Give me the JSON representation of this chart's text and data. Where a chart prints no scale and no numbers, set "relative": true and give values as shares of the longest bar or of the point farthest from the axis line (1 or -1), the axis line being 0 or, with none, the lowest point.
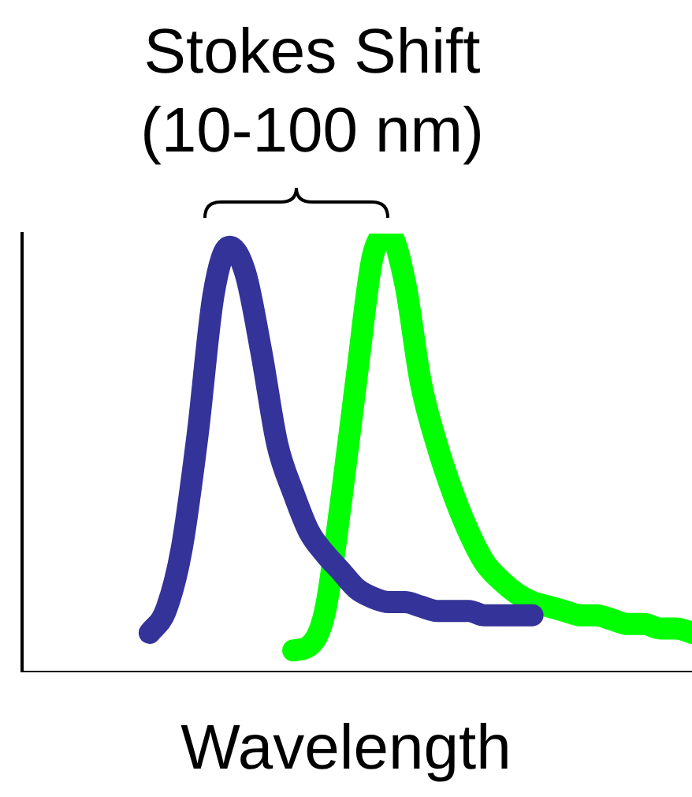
{
  "chart_data": {
    "type": "line",
    "relative": true,
    "xlabel": "Wavelength",
    "annotations": [
      "Stokes Shift (10-100 nm)"
    ],
    "categories": [
      null,
      null,
      null,
      null,
      null,
      null,
      null,
      null,
      null,
      null,
      null,
      null,
      null,
      null,
      null,
      null,
      null,
      null,
      null,
      null,
      null,
      null,
      null,
      null,
      null,
      null,
      null,
      null,
      null,
      null,
      null,
      null,
      null,
      null,
      null,
      null,
      null,
      null,
      null,
      null,
      null,
      null,
      null
    ],
    "series": [
      {
        "color": "#333399",
        "values": [
          null,
          null,
          null,
          null,
          null,
          null,
          null,
          null,
          0.09,
          0.14,
          0.28,
          0.54,
          0.86,
          0.97,
          0.91,
          0.73,
          0.52,
          0.41,
          0.32,
          0.27,
          0.23,
          0.19,
          0.17,
          0.16,
          0.16,
          0.15,
          0.14,
          0.14,
          0.14,
          0.13,
          0.13,
          0.13,
          0.13,
          null,
          null,
          null,
          null,
          null,
          null,
          null,
          null,
          null,
          null
        ]
      },
      {
        "color": "#00ff00",
        "values": [
          null,
          null,
          null,
          null,
          null,
          null,
          null,
          null,
          null,
          null,
          null,
          null,
          null,
          null,
          null,
          null,
          null,
          0.05,
          0.06,
          0.14,
          0.39,
          0.68,
          0.95,
          1,
          0.89,
          0.66,
          0.52,
          0.41,
          0.32,
          0.25,
          0.21,
          0.18,
          0.16,
          0.15,
          0.14,
          0.13,
          0.13,
          0.12,
          0.11,
          0.11,
          0.1,
          0.1,
          0.09
        ]
      }
    ],
    "grid": false,
    "legend": false,
    "marker": "none",
    "line_style": "solid",
    "tick_labels": false
  }
}
